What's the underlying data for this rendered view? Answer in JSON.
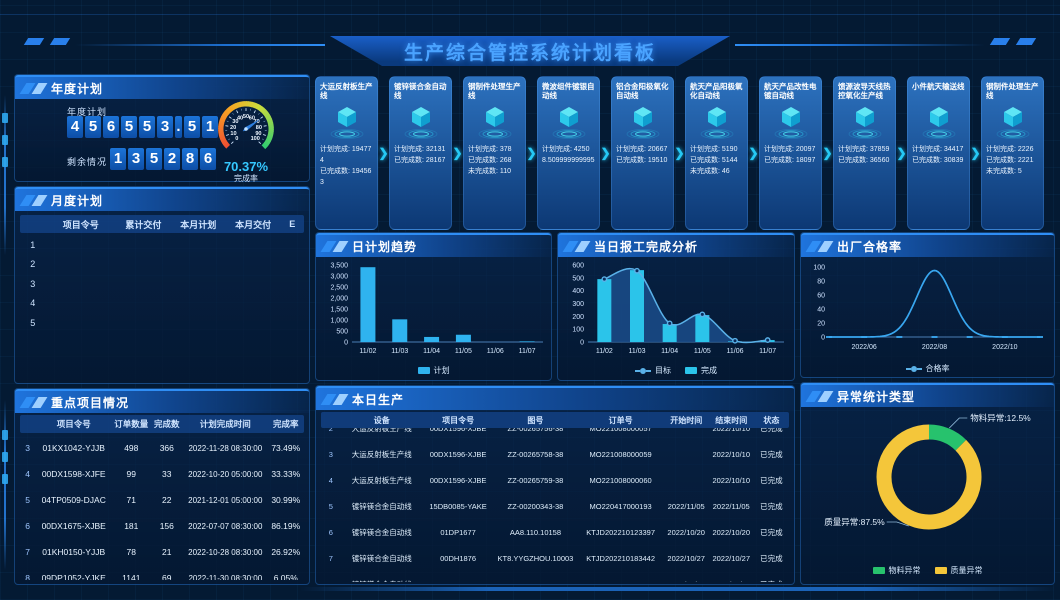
{
  "title": "生产综合管控系统计划看板",
  "annual": {
    "header": "年度计划",
    "plan_label": "年度计划",
    "plan_value": "456553.51",
    "remain_label": "剩余情况",
    "remain_value": "135286"
  },
  "monthly": {
    "header": "月度计划",
    "columns": [
      "项目令号",
      "累计交付",
      "本月计划",
      "本月交付",
      "E"
    ],
    "row_numbers": [
      "1",
      "2",
      "3",
      "4",
      "5"
    ]
  },
  "key_projects": {
    "header": "重点项目情况",
    "columns": [
      "项目令号",
      "订单数量",
      "完成数",
      "计划完成时间",
      "完成率"
    ],
    "rows": [
      {
        "no": "3",
        "id": "01KX1042-YJJB",
        "qty": "498",
        "done": "366",
        "time": "2022-11-28 08:30:00",
        "rate": "73.49%"
      },
      {
        "no": "4",
        "id": "00DX1598-XJFE",
        "qty": "99",
        "done": "33",
        "time": "2022-10-20 05:00:00",
        "rate": "33.33%"
      },
      {
        "no": "5",
        "id": "04TP0509-DJAC",
        "qty": "71",
        "done": "22",
        "time": "2021-12-01 05:00:00",
        "rate": "30.99%"
      },
      {
        "no": "6",
        "id": "00DX1675-XJBE",
        "qty": "181",
        "done": "156",
        "time": "2022-07-07 08:30:00",
        "rate": "86.19%"
      },
      {
        "no": "7",
        "id": "01KH0150-YJJB",
        "qty": "78",
        "done": "21",
        "time": "2022-10-28 08:30:00",
        "rate": "26.92%"
      },
      {
        "no": "8",
        "id": "09DP1052-YJKE",
        "qty": "1141",
        "done": "69",
        "time": "2022-11-30 08:30:00",
        "rate": "6.05%"
      }
    ]
  },
  "production_lines": [
    {
      "name": "大运反射板生产线",
      "stats": [
        {
          "label": "计划完成:",
          "value": "194774"
        },
        {
          "label": "已完成数:",
          "value": "194563"
        }
      ]
    },
    {
      "name": "镀锌镁合金自动线",
      "stats": [
        {
          "label": "计划完成:",
          "value": "32131"
        },
        {
          "label": "已完成数:",
          "value": "28167"
        }
      ]
    },
    {
      "name": "钢制件处理生产线",
      "stats": [
        {
          "label": "计划完成:",
          "value": "378"
        },
        {
          "label": "已完成数:",
          "value": "268"
        },
        {
          "label": "未完成数:",
          "value": "110"
        }
      ]
    },
    {
      "name": "微波组件镀银自动线",
      "stats": [
        {
          "label": "计划完成:",
          "value": "42508.509999999995"
        }
      ]
    },
    {
      "name": "铝合金阳极氧化自动线",
      "stats": [
        {
          "label": "计划完成:",
          "value": "20667"
        },
        {
          "label": "已完成数:",
          "value": "19510"
        }
      ]
    },
    {
      "name": "航天产品阳极氧化自动线",
      "stats": [
        {
          "label": "计划完成:",
          "value": "5190"
        },
        {
          "label": "已完成数:",
          "value": "5144"
        },
        {
          "label": "未完成数:",
          "value": "46"
        }
      ]
    },
    {
      "name": "航天产品改性电镀自动线",
      "stats": [
        {
          "label": "计划完成:",
          "value": "20097"
        },
        {
          "label": "已完成数:",
          "value": "18097"
        }
      ]
    },
    {
      "name": "馈源波导天线热控氧化生产线",
      "stats": [
        {
          "label": "计划完成:",
          "value": "37859"
        },
        {
          "label": "已完成数:",
          "value": "36560"
        }
      ]
    },
    {
      "name": "小件航天输送线",
      "stats": [
        {
          "label": "计划完成:",
          "value": "34417"
        },
        {
          "label": "已完成数:",
          "value": "30839"
        }
      ]
    },
    {
      "name": "钢制件处理生产线",
      "stats": [
        {
          "label": "计划完成:",
          "value": "2226"
        },
        {
          "label": "已完成数:",
          "value": "2221"
        },
        {
          "label": "未完成数:",
          "value": "5"
        }
      ]
    }
  ],
  "today": {
    "header": "本日生产",
    "columns": [
      "设备",
      "项目令号",
      "图号",
      "订单号",
      "开始时间",
      "结束时间",
      "状态"
    ],
    "rows": [
      {
        "no": "2",
        "device": "大运反射板生产线",
        "project": "00DX1596-XJBE",
        "drawing": "ZZ-00265756-38",
        "order": "MO221008000057",
        "start": "",
        "end": "2022/10/10",
        "status": "已完成"
      },
      {
        "no": "3",
        "device": "大运反射板生产线",
        "project": "00DX1596-XJBE",
        "drawing": "ZZ-00265758-38",
        "order": "MO221008000059",
        "start": "",
        "end": "2022/10/10",
        "status": "已完成"
      },
      {
        "no": "4",
        "device": "大运反射板生产线",
        "project": "00DX1596-XJBE",
        "drawing": "ZZ-00265759-38",
        "order": "MO221008000060",
        "start": "",
        "end": "2022/10/10",
        "status": "已完成"
      },
      {
        "no": "5",
        "device": "镀锌镁合金自动线",
        "project": "15DB0085-YAKE",
        "drawing": "ZZ-00200343-38",
        "order": "MO220417000193",
        "start": "2022/11/05",
        "end": "2022/11/05",
        "status": "已完成"
      },
      {
        "no": "6",
        "device": "镀锌镁合金自动线",
        "project": "01DP1677",
        "drawing": "AA8.110.10158",
        "order": "KTJD202210123397",
        "start": "2022/10/20",
        "end": "2022/10/20",
        "status": "已完成"
      },
      {
        "no": "7",
        "device": "镀锌镁合金自动线",
        "project": "00DH1876",
        "drawing": "KT8.YYGZHOU.10003",
        "order": "KTJD202210183442",
        "start": "2022/10/27",
        "end": "2022/10/27",
        "status": "已完成"
      },
      {
        "no": "8",
        "device": "镀锌镁合金自动线",
        "project": "01DP1677",
        "drawing": "AA8.110.10159",
        "order": "KTJD202210183443",
        "start": "2022/10/28",
        "end": "2022/10/28",
        "status": "已完成"
      }
    ]
  },
  "chart_data": [
    {
      "id": "daily_plan_trend",
      "type": "bar",
      "title": "日计划趋势",
      "categories": [
        "11/02",
        "11/03",
        "11/04",
        "11/05",
        "11/06",
        "11/07"
      ],
      "values": [
        3400,
        1030,
        230,
        330,
        0,
        30
      ],
      "yticks": [
        0,
        500,
        1000,
        1500,
        2000,
        2500,
        3000,
        3500
      ],
      "ylim": [
        0,
        3500
      ],
      "legend": [
        "计划"
      ],
      "bar_color": "#2fb3ef"
    },
    {
      "id": "daily_report",
      "type": "bar+line",
      "title": "当日报工完成分析",
      "categories": [
        "11/02",
        "11/03",
        "11/04",
        "11/05",
        "11/06",
        "11/07"
      ],
      "series": [
        {
          "name": "目标",
          "type": "line",
          "values": [
            490,
            555,
            145,
            215,
            10,
            15
          ]
        },
        {
          "name": "完成",
          "type": "bar",
          "values": [
            490,
            560,
            140,
            210,
            5,
            15
          ]
        }
      ],
      "yticks": [
        0,
        100,
        200,
        300,
        400,
        500,
        600
      ],
      "ylim": [
        0,
        600
      ],
      "bar_color": "#2bc4ea",
      "line_color": "#5ab1e8",
      "area_color": "#1a4a86"
    },
    {
      "id": "pass_rate",
      "type": "line",
      "title": "出厂合格率",
      "x": [
        "2022/05",
        "2022/06",
        "2022/07",
        "2022/08",
        "2022/09",
        "2022/10",
        "2022/11"
      ],
      "values": [
        0,
        0,
        0,
        95,
        0,
        0,
        0
      ],
      "x_labels_shown": [
        "2022/06",
        "2022/08",
        "2022/10"
      ],
      "yticks": [
        0,
        20,
        40,
        60,
        80,
        100
      ],
      "ylim": [
        0,
        100
      ],
      "legend": [
        "合格率"
      ],
      "line_color": "#39a7f0",
      "smooth": true
    },
    {
      "id": "abnormal",
      "type": "donut",
      "title": "异常统计类型",
      "slices": [
        {
          "label": "物料异常",
          "value": 12.5,
          "callout": "物料异常:12.5%",
          "color": "#27c26d"
        },
        {
          "label": "质量异常",
          "value": 87.5,
          "callout": "质量异常:87.5%",
          "color": "#f4c63a"
        }
      ],
      "legend": [
        "物料异常",
        "质量异常"
      ]
    },
    {
      "id": "completion_gauge",
      "type": "gauge",
      "title": "完成率",
      "value": 70.37,
      "value_text": "70.37%",
      "caption": "完成率",
      "min": 0,
      "max": 100,
      "ticks": [
        0,
        10,
        20,
        30,
        40,
        50,
        60,
        70,
        80,
        90,
        100
      ]
    }
  ]
}
